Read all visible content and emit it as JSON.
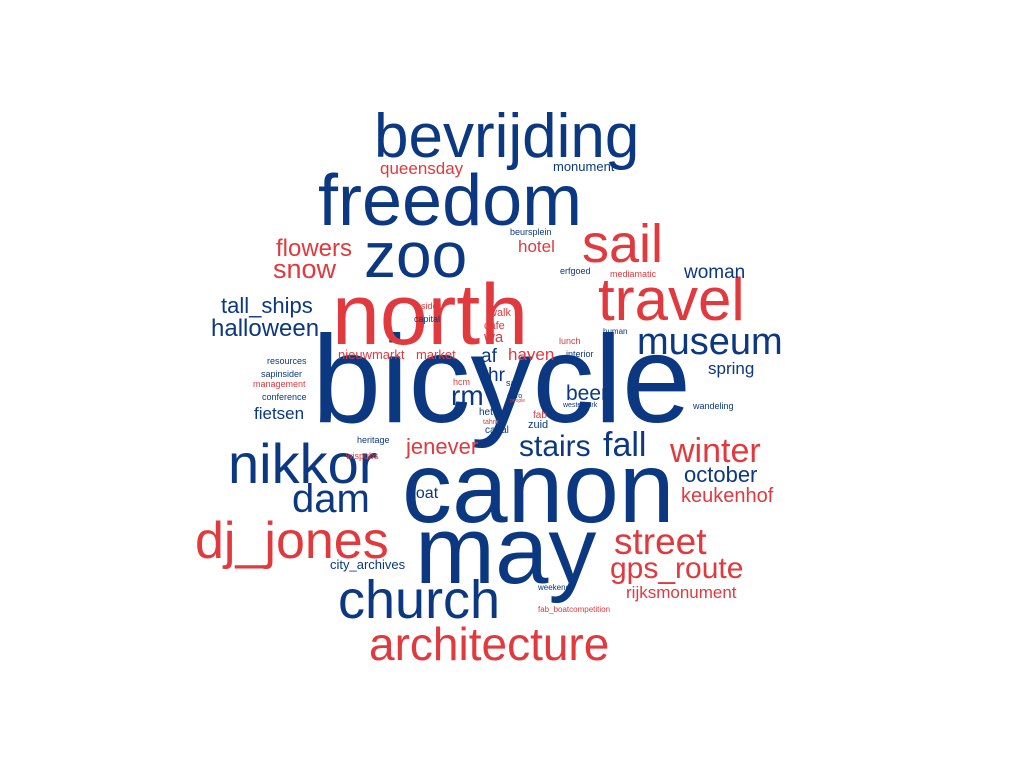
{
  "colors": {
    "navy": "#0b3880",
    "red": "#e0393e",
    "background": "#ffffff"
  },
  "words": [
    {
      "text": "bicycle",
      "color": "navy"
    },
    {
      "text": "canon",
      "color": "navy"
    },
    {
      "text": "may",
      "color": "navy"
    },
    {
      "text": "north",
      "color": "red"
    },
    {
      "text": "freedom",
      "color": "navy"
    },
    {
      "text": "bevrijding",
      "color": "navy"
    },
    {
      "text": "zoo",
      "color": "navy"
    },
    {
      "text": "travel",
      "color": "red"
    },
    {
      "text": "sail",
      "color": "red"
    },
    {
      "text": "nikkor",
      "color": "navy"
    },
    {
      "text": "dj_jones",
      "color": "red"
    },
    {
      "text": "church",
      "color": "navy"
    },
    {
      "text": "architecture",
      "color": "red"
    },
    {
      "text": "museum",
      "color": "navy"
    },
    {
      "text": "dam",
      "color": "navy"
    },
    {
      "text": "street",
      "color": "red"
    },
    {
      "text": "winter",
      "color": "red"
    },
    {
      "text": "fall",
      "color": "navy"
    },
    {
      "text": "gps_route",
      "color": "red"
    },
    {
      "text": "stairs",
      "color": "navy"
    },
    {
      "text": "flowers",
      "color": "red"
    },
    {
      "text": "snow",
      "color": "red"
    },
    {
      "text": "halloween",
      "color": "navy"
    },
    {
      "text": "tall_ships",
      "color": "navy"
    },
    {
      "text": "october",
      "color": "navy"
    },
    {
      "text": "keukenhof",
      "color": "red"
    },
    {
      "text": "rm",
      "color": "navy"
    },
    {
      "text": "woman",
      "color": "navy"
    },
    {
      "text": "jenever",
      "color": "red"
    },
    {
      "text": "beer",
      "color": "navy"
    },
    {
      "text": "queensday",
      "color": "red"
    },
    {
      "text": "rijksmonument",
      "color": "red"
    },
    {
      "text": "spring",
      "color": "navy"
    },
    {
      "text": "fietsen",
      "color": "navy"
    },
    {
      "text": "hotel",
      "color": "red"
    },
    {
      "text": "af",
      "color": "navy"
    },
    {
      "text": "haven",
      "color": "red"
    },
    {
      "text": "hr",
      "color": "navy"
    },
    {
      "text": "boat",
      "color": "navy"
    },
    {
      "text": "city_archives",
      "color": "navy"
    },
    {
      "text": "monument",
      "color": "navy"
    },
    {
      "text": "nieuwmarkt",
      "color": "red"
    },
    {
      "text": "market",
      "color": "red"
    },
    {
      "text": "wa",
      "color": "red"
    },
    {
      "text": "cafe",
      "color": "red"
    },
    {
      "text": "walk",
      "color": "red"
    },
    {
      "text": "zuid",
      "color": "navy"
    },
    {
      "text": "canal",
      "color": "navy"
    },
    {
      "text": "het",
      "color": "navy"
    },
    {
      "text": "fab",
      "color": "red"
    },
    {
      "text": "beursplein",
      "color": "navy"
    },
    {
      "text": "erfgoed",
      "color": "navy"
    },
    {
      "text": "mediamatic",
      "color": "red"
    },
    {
      "text": "insider",
      "color": "red"
    },
    {
      "text": "capital",
      "color": "navy"
    },
    {
      "text": "lunch",
      "color": "red"
    },
    {
      "text": "human",
      "color": "navy"
    },
    {
      "text": "interior",
      "color": "navy"
    },
    {
      "text": "resources",
      "color": "navy"
    },
    {
      "text": "sapinsider",
      "color": "navy"
    },
    {
      "text": "management",
      "color": "red"
    },
    {
      "text": "conference",
      "color": "navy"
    },
    {
      "text": "hcm",
      "color": "red"
    },
    {
      "text": "sap",
      "color": "navy"
    },
    {
      "text": "cairo",
      "color": "navy"
    },
    {
      "text": "westerpark",
      "color": "navy"
    },
    {
      "text": "wandeling",
      "color": "navy"
    },
    {
      "text": "tahrir",
      "color": "red"
    },
    {
      "text": "heritage",
      "color": "navy"
    },
    {
      "text": "wispubs",
      "color": "red"
    },
    {
      "text": "weekend",
      "color": "navy"
    },
    {
      "text": "fab_boatcompetition",
      "color": "red"
    },
    {
      "text": "people",
      "color": "red"
    }
  ]
}
